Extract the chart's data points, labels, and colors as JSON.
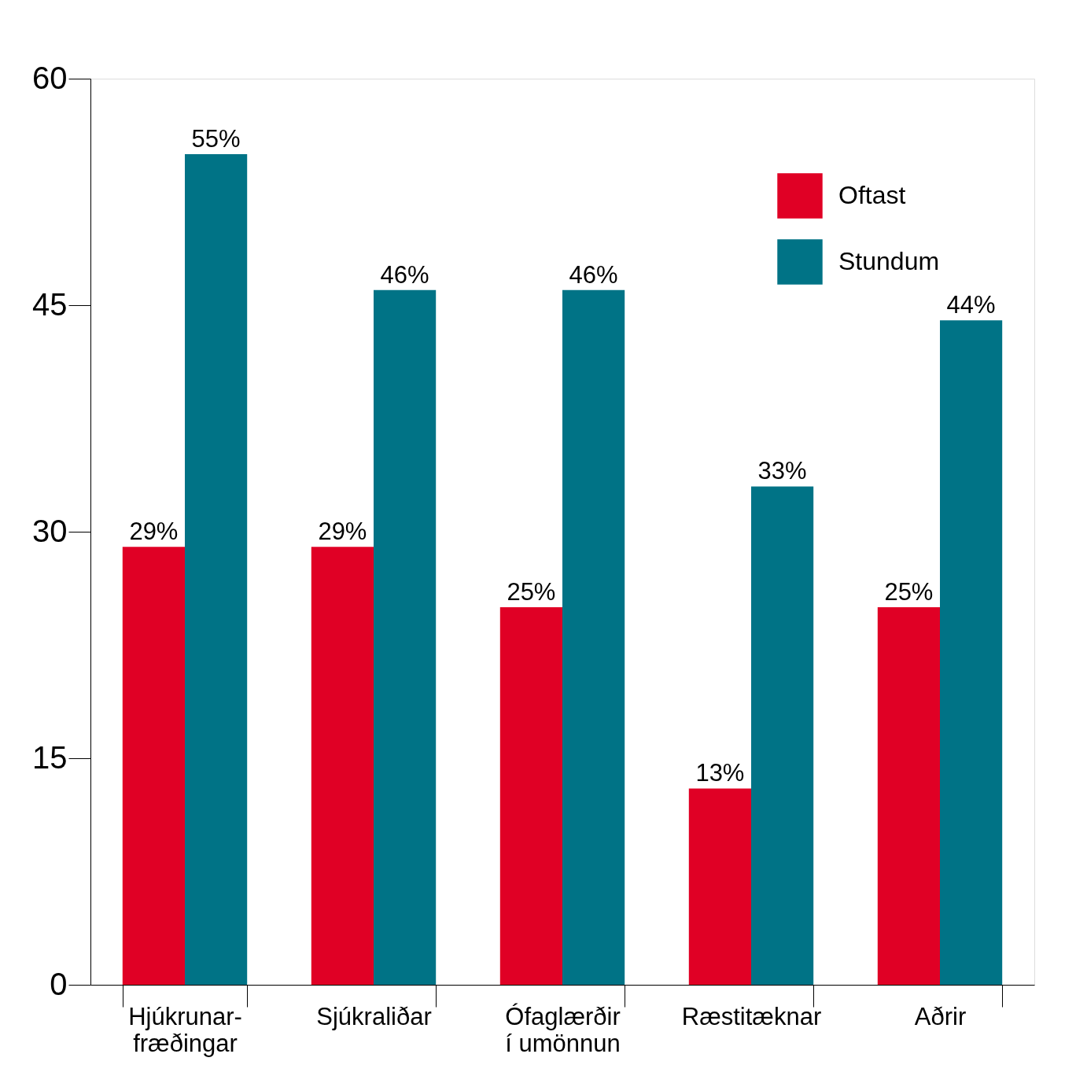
{
  "chart_data": {
    "type": "bar",
    "categories": [
      "Hjúkrunar-\nfræðingar",
      "Sjúkraliðar",
      "Ófaglærðir\ní umönnun",
      "Ræstitæknar",
      "Aðrir"
    ],
    "series": [
      {
        "name": "Oftast",
        "color": "#e00025",
        "values": [
          29,
          29,
          25,
          13,
          25
        ],
        "value_labels": [
          "29%",
          "29%",
          "25%",
          "13%",
          "25%"
        ]
      },
      {
        "name": "Stundum",
        "color": "#007386",
        "values": [
          55,
          46,
          46,
          33,
          44
        ],
        "value_labels": [
          "55%",
          "46%",
          "46%",
          "33%",
          "44%"
        ]
      }
    ],
    "ylim": [
      0,
      60
    ],
    "yticks": [
      0,
      15,
      30,
      45,
      60
    ],
    "grid": false,
    "legend": "top right"
  }
}
